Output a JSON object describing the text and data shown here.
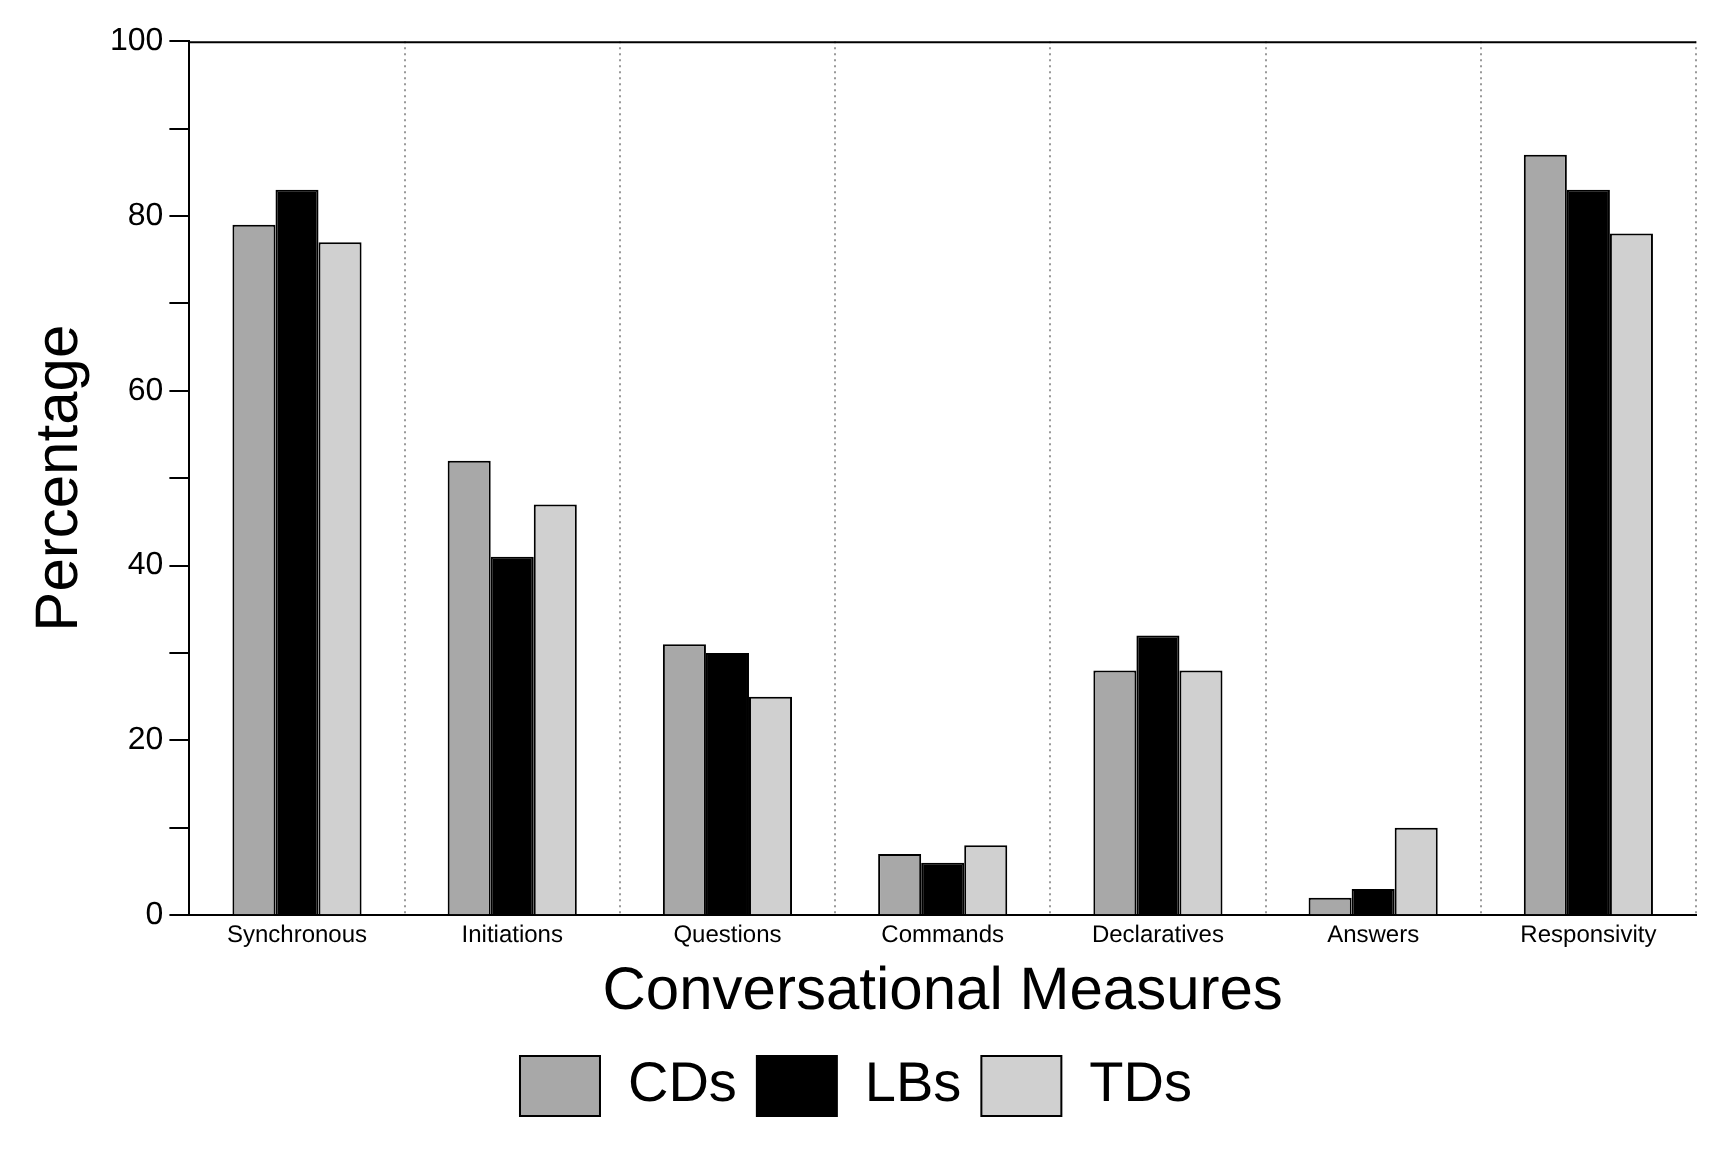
{
  "chart_data": {
    "type": "bar",
    "xlabel": "Conversational Measures",
    "ylabel": "Percentage",
    "categories": [
      "Synchronous",
      "Initiations",
      "Questions",
      "Commands",
      "Declaratives",
      "Answers",
      "Responsivity"
    ],
    "series": [
      {
        "name": "CDs",
        "color": "#a8a8a8",
        "values": [
          79,
          52,
          31,
          7,
          28,
          2,
          87
        ]
      },
      {
        "name": "LBs",
        "color": "#000000",
        "values": [
          83,
          41,
          30,
          6,
          32,
          3,
          83
        ]
      },
      {
        "name": "TDs",
        "color": "#d0d0d0",
        "values": [
          77,
          47,
          25,
          8,
          28,
          10,
          78
        ]
      }
    ],
    "ylim": [
      0,
      100
    ],
    "yticks": [
      0,
      {
        "value": 10,
        "label": null
      },
      20,
      {
        "value": 30,
        "label": null
      },
      40,
      {
        "value": 50,
        "label": null
      },
      60,
      {
        "value": 70,
        "label": null
      },
      80,
      {
        "value": 90,
        "label": null
      },
      100
    ],
    "grid": "x",
    "legend": "bottom"
  }
}
